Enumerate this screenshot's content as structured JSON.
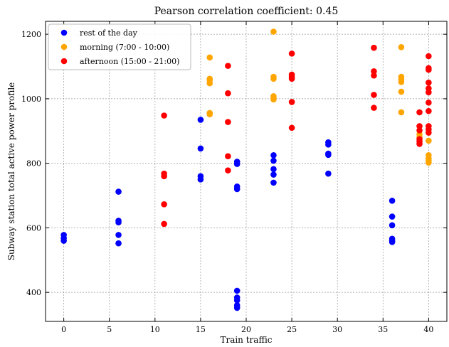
{
  "chart_data": {
    "type": "scatter",
    "title": "Pearson correlation coefficient: 0.45",
    "xlabel": "Train traffic",
    "ylabel": "Subway station total active power profile",
    "xlim": [
      -2,
      42
    ],
    "ylim": [
      310,
      1240
    ],
    "xticks": [
      0,
      5,
      10,
      15,
      20,
      25,
      30,
      35,
      40
    ],
    "yticks": [
      400,
      600,
      800,
      1000,
      1200
    ],
    "grid": true,
    "legend_position": "top-left",
    "series": [
      {
        "name": "rest of the day",
        "color": "#0000ff",
        "points": [
          [
            0,
            578
          ],
          [
            0,
            568
          ],
          [
            0,
            560
          ],
          [
            6,
            712
          ],
          [
            6,
            622
          ],
          [
            6,
            617
          ],
          [
            6,
            578
          ],
          [
            6,
            552
          ],
          [
            15,
            935
          ],
          [
            15,
            846
          ],
          [
            15,
            760
          ],
          [
            15,
            750
          ],
          [
            19,
            805
          ],
          [
            19,
            798
          ],
          [
            19,
            728
          ],
          [
            19,
            720
          ],
          [
            19,
            405
          ],
          [
            19,
            384
          ],
          [
            19,
            375
          ],
          [
            19,
            360
          ],
          [
            19,
            352
          ],
          [
            23,
            825
          ],
          [
            23,
            808
          ],
          [
            23,
            782
          ],
          [
            23,
            765
          ],
          [
            23,
            740
          ],
          [
            29,
            865
          ],
          [
            29,
            858
          ],
          [
            29,
            830
          ],
          [
            29,
            826
          ],
          [
            29,
            768
          ],
          [
            36,
            684
          ],
          [
            36,
            635
          ],
          [
            36,
            608
          ],
          [
            36,
            566
          ],
          [
            36,
            560
          ],
          [
            36,
            556
          ]
        ]
      },
      {
        "name": "morning (7:00 - 10:00)",
        "color": "#ffa500",
        "points": [
          [
            16,
            1128
          ],
          [
            16,
            1062
          ],
          [
            16,
            1058
          ],
          [
            16,
            1048
          ],
          [
            16,
            956
          ],
          [
            16,
            952
          ],
          [
            23,
            1208
          ],
          [
            23,
            1068
          ],
          [
            23,
            1062
          ],
          [
            23,
            1008
          ],
          [
            23,
            1002
          ],
          [
            23,
            998
          ],
          [
            37,
            1160
          ],
          [
            37,
            1068
          ],
          [
            37,
            1060
          ],
          [
            37,
            1052
          ],
          [
            37,
            1022
          ],
          [
            37,
            958
          ],
          [
            39,
            890
          ],
          [
            39,
            880
          ],
          [
            40,
            870
          ],
          [
            40,
            825
          ],
          [
            40,
            815
          ],
          [
            40,
            808
          ],
          [
            40,
            802
          ]
        ]
      },
      {
        "name": "afternoon (15:00 - 21:00)",
        "color": "#ff0000",
        "points": [
          [
            11,
            948
          ],
          [
            11,
            768
          ],
          [
            11,
            760
          ],
          [
            11,
            673
          ],
          [
            11,
            612
          ],
          [
            18,
            1102
          ],
          [
            18,
            1017
          ],
          [
            18,
            928
          ],
          [
            18,
            822
          ],
          [
            18,
            778
          ],
          [
            25,
            1140
          ],
          [
            25,
            1075
          ],
          [
            25,
            1068
          ],
          [
            25,
            1062
          ],
          [
            25,
            990
          ],
          [
            25,
            910
          ],
          [
            34,
            1158
          ],
          [
            34,
            1085
          ],
          [
            34,
            1072
          ],
          [
            34,
            1012
          ],
          [
            34,
            972
          ],
          [
            39,
            958
          ],
          [
            39,
            915
          ],
          [
            39,
            902
          ],
          [
            39,
            875
          ],
          [
            39,
            868
          ],
          [
            39,
            860
          ],
          [
            40,
            1132
          ],
          [
            40,
            1095
          ],
          [
            40,
            1090
          ],
          [
            40,
            1050
          ],
          [
            40,
            1032
          ],
          [
            40,
            1020
          ],
          [
            40,
            988
          ],
          [
            40,
            962
          ],
          [
            40,
            915
          ],
          [
            40,
            905
          ],
          [
            40,
            895
          ]
        ]
      }
    ]
  }
}
